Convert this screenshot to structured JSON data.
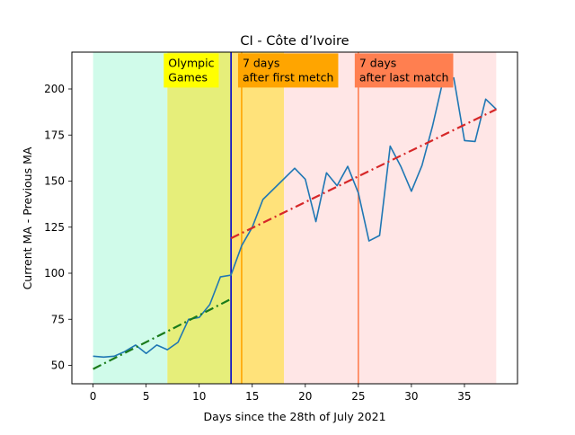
{
  "chart_data": {
    "type": "line",
    "title": "CI - Côte d’Ivoire",
    "xlabel": "Days since the 28th of July 2021",
    "ylabel": "Current MA - Previous MA",
    "xlim": [
      -2,
      40
    ],
    "ylim": [
      40,
      220
    ],
    "xticks": [
      0,
      5,
      10,
      15,
      20,
      25,
      30,
      35
    ],
    "yticks": [
      50,
      75,
      100,
      125,
      150,
      175,
      200
    ],
    "grid": false,
    "bands": [
      {
        "x0": 0,
        "x1": 7,
        "color": "#d0fbea"
      },
      {
        "x0": 7,
        "x1": 13,
        "color": "#e6ee7a"
      },
      {
        "x0": 13,
        "x1": 18,
        "color": "#ffe27a"
      },
      {
        "x0": 18,
        "x1": 38,
        "color": "#ffe6e6"
      }
    ],
    "vlines": [
      {
        "x": 13,
        "color": "#0000cc"
      },
      {
        "x": 14,
        "color": "#ffa500"
      },
      {
        "x": 25,
        "color": "#ff7f50"
      }
    ],
    "annotations": [
      {
        "text": [
          "Olympic",
          "Games"
        ],
        "x": 7,
        "y": 212,
        "bg": "#ffff00"
      },
      {
        "text": [
          "7 days",
          "after first metch"
        ],
        "x": 14,
        "y": 212,
        "bg": "#ffa500"
      },
      {
        "text": [
          "7 days",
          "after last match"
        ],
        "x": 25,
        "y": 212,
        "bg": "#ff7f50"
      }
    ],
    "series": [
      {
        "style": "solid",
        "color": "#1f77b4",
        "x": [
          0,
          1,
          2,
          3,
          4,
          5,
          6,
          7,
          8,
          9,
          10,
          11,
          12,
          13,
          14,
          15,
          16,
          19,
          20,
          21,
          22,
          23,
          24,
          25,
          26,
          27,
          28,
          29,
          30,
          31,
          32,
          33,
          34,
          35,
          36,
          37,
          38
        ],
        "values": [
          55,
          54.5,
          55,
          57.5,
          61,
          56.5,
          61,
          58.5,
          62.5,
          75,
          76,
          83,
          98,
          99,
          115,
          125,
          140,
          157,
          151,
          128,
          154.5,
          147.5,
          158,
          143.5,
          117.5,
          120.5,
          169,
          158,
          144.5,
          158.5,
          180,
          205,
          206,
          172,
          171.5,
          194.5,
          189
        ]
      },
      {
        "style": "dashdot",
        "color": "#1a7a1a",
        "x": [
          0,
          13
        ],
        "values": [
          48,
          86
        ]
      },
      {
        "style": "dashdot",
        "color": "#d62728",
        "x": [
          13,
          38
        ],
        "values": [
          119,
          189
        ]
      }
    ]
  }
}
